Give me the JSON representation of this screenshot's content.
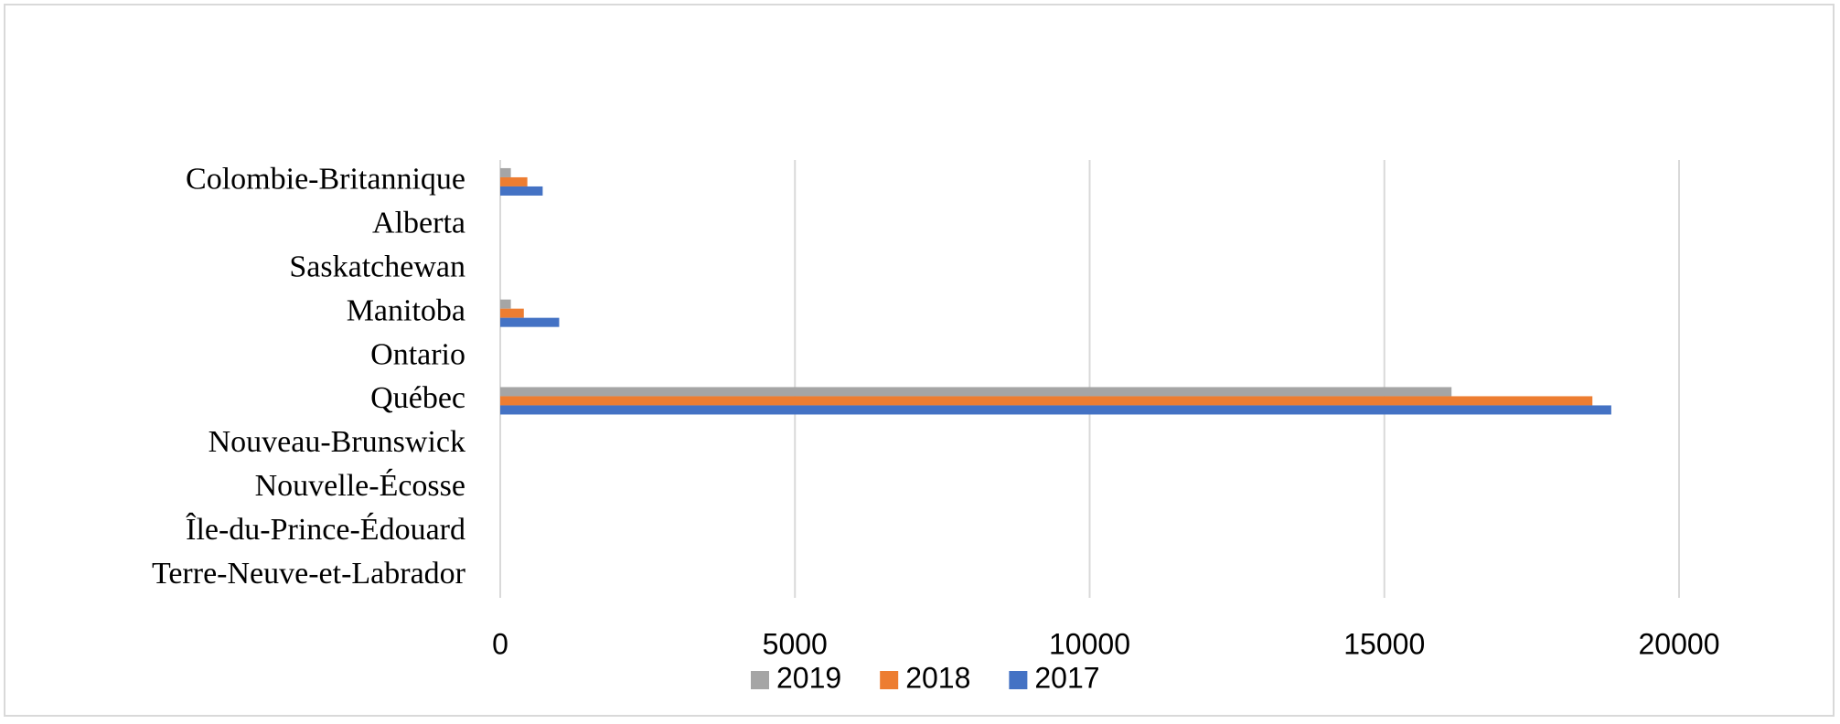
{
  "chart_data": {
    "type": "bar",
    "orientation": "horizontal",
    "categories": [
      "Colombie-Britannique",
      "Alberta",
      "Saskatchewan",
      "Manitoba",
      "Ontario",
      "Québec",
      "Nouveau-Brunswick",
      "Nouvelle-Écosse",
      "Île-du-Prince-Édouard",
      "Terre-Neuve-et-Labrador"
    ],
    "series": [
      {
        "name": "2019",
        "color": "#a5a5a5",
        "values": [
          180,
          0,
          0,
          180,
          0,
          16140,
          0,
          0,
          0,
          0
        ]
      },
      {
        "name": "2018",
        "color": "#ed7d31",
        "values": [
          460,
          0,
          0,
          400,
          0,
          18530,
          0,
          0,
          0,
          0
        ]
      },
      {
        "name": "2017",
        "color": "#4472c4",
        "values": [
          720,
          0,
          0,
          1000,
          0,
          18850,
          0,
          0,
          0,
          0
        ]
      }
    ],
    "xlim": [
      0,
      20000
    ],
    "xticks": [
      0,
      5000,
      10000,
      15000,
      20000
    ],
    "grid": true,
    "legend": "bottom"
  }
}
